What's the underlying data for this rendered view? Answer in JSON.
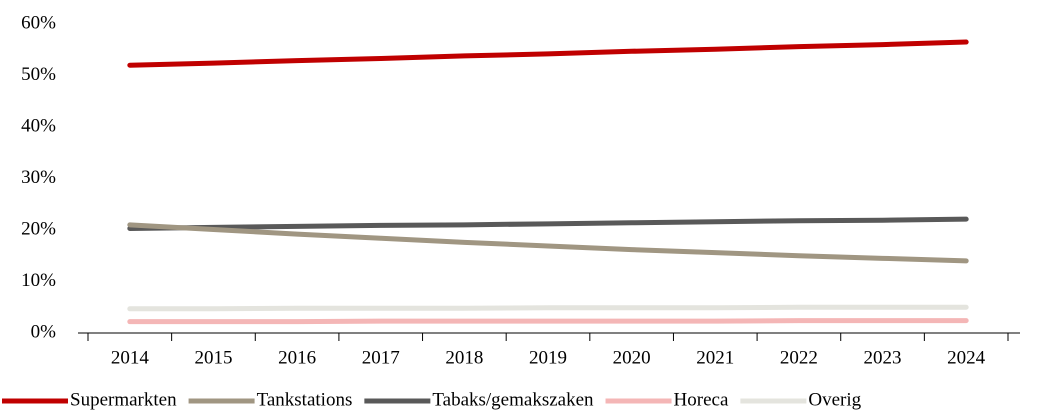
{
  "chart_data": {
    "type": "line",
    "categories": [
      "2014",
      "2015",
      "2016",
      "2017",
      "2018",
      "2019",
      "2020",
      "2021",
      "2022",
      "2023",
      "2024"
    ],
    "series": [
      {
        "name": "Supermarkten",
        "color": "#c00000",
        "values": [
          52,
          52.4,
          52.9,
          53.3,
          53.8,
          54.2,
          54.7,
          55.1,
          55.6,
          56.0,
          56.5
        ]
      },
      {
        "name": "Tankstations",
        "color": "#a09682",
        "values": [
          21,
          20.1,
          19.2,
          18.4,
          17.6,
          16.9,
          16.2,
          15.6,
          15.0,
          14.5,
          14.0
        ]
      },
      {
        "name": "Tabaks/gemakszaken",
        "color": "#595959",
        "values": [
          20.3,
          20.5,
          20.7,
          20.9,
          21.0,
          21.2,
          21.4,
          21.6,
          21.8,
          21.9,
          22.1
        ]
      },
      {
        "name": "Horeca",
        "color": "#f4b6b6",
        "values": [
          2.2,
          2.2,
          2.2,
          2.3,
          2.3,
          2.3,
          2.3,
          2.3,
          2.4,
          2.4,
          2.4
        ]
      },
      {
        "name": "Overig",
        "color": "#e4e4de",
        "values": [
          4.7,
          4.7,
          4.8,
          4.8,
          4.8,
          4.9,
          4.9,
          4.9,
          5.0,
          5.0,
          5.0
        ]
      }
    ],
    "ylim": [
      0,
      60
    ],
    "yticks": [
      {
        "value": 0,
        "label": "0%"
      },
      {
        "value": 10,
        "label": "10%"
      },
      {
        "value": 20,
        "label": "20%"
      },
      {
        "value": 30,
        "label": "30%"
      },
      {
        "value": 40,
        "label": "40%"
      },
      {
        "value": 50,
        "label": "50%"
      },
      {
        "value": 60,
        "label": "60%"
      }
    ],
    "grid": false,
    "legend": "bottom"
  }
}
